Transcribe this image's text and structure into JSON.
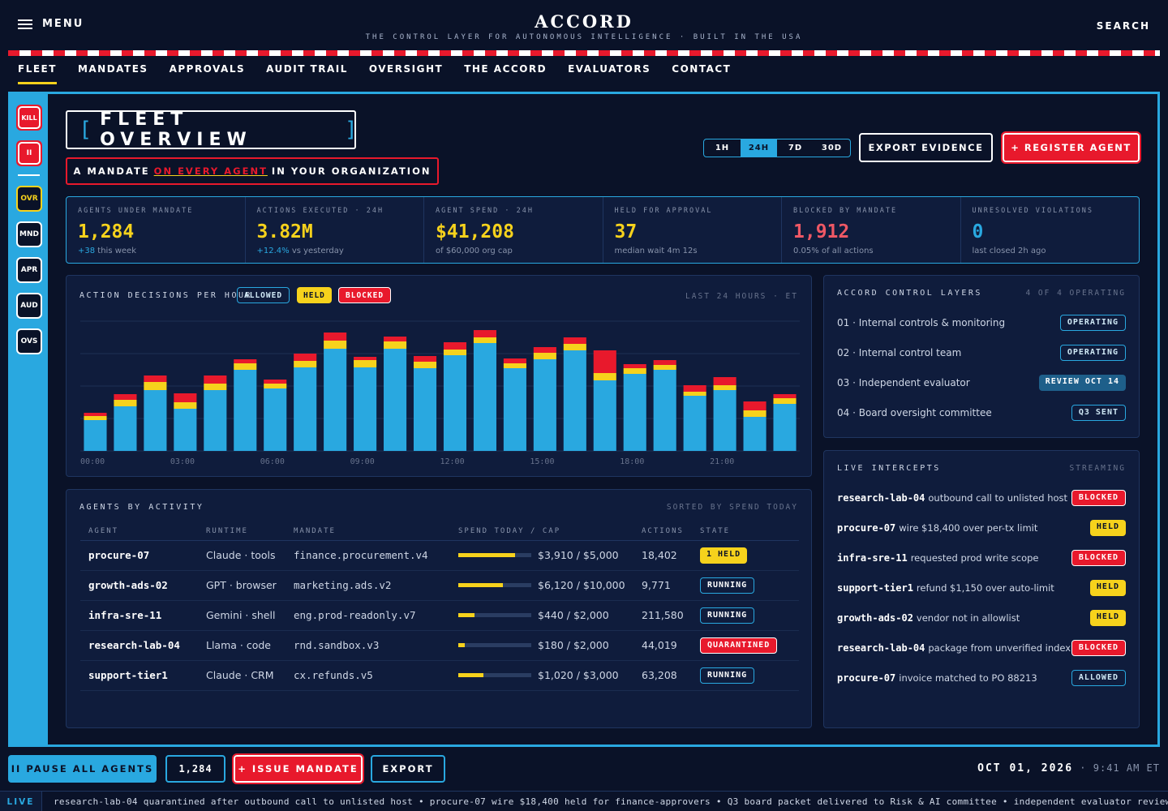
{
  "header": {
    "menu_label": "MENU",
    "brand": "ACCORD",
    "tagline": "THE CONTROL LAYER FOR AUTONOMOUS INTELLIGENCE · BUILT IN THE USA",
    "search_label": "SEARCH"
  },
  "nav": {
    "tabs": [
      {
        "label": "FLEET",
        "active": true
      },
      {
        "label": "MANDATES"
      },
      {
        "label": "APPROVALS"
      },
      {
        "label": "AUDIT TRAIL"
      },
      {
        "label": "OVERSIGHT"
      },
      {
        "label": "THE ACCORD"
      },
      {
        "label": "EVALUATORS"
      },
      {
        "label": "CONTACT"
      }
    ]
  },
  "sidebar": {
    "kill": "KILL",
    "pause": "II",
    "items": [
      {
        "label": "OVR"
      },
      {
        "label": "MND"
      },
      {
        "label": "APR"
      },
      {
        "label": "AUD"
      },
      {
        "label": "OVS"
      }
    ]
  },
  "page": {
    "title": "FLEET OVERVIEW",
    "bracket_open": "[",
    "bracket_close": "]",
    "banner_pre": "A MANDATE",
    "banner_hl": "ON EVERY AGENT",
    "banner_post": "IN YOUR ORGANIZATION"
  },
  "range": {
    "options": [
      "1H",
      "24H",
      "7D",
      "30D"
    ],
    "selected": "24H"
  },
  "actions": {
    "export_evidence": "EXPORT EVIDENCE",
    "register_agent": "+ REGISTER AGENT"
  },
  "stats": [
    {
      "label": "AGENTS UNDER MANDATE",
      "value": "1,284",
      "value_color": "#f6d21c",
      "sub_pos": "+38",
      "sub": " this week"
    },
    {
      "label": "ACTIONS EXECUTED · 24H",
      "value": "3.82M",
      "value_color": "#f6d21c",
      "sub_pos": "+12.4%",
      "sub": " vs yesterday"
    },
    {
      "label": "AGENT SPEND · 24H",
      "value": "$41,208",
      "value_color": "#f6d21c",
      "sub_pos": "",
      "sub": "of $60,000 org cap"
    },
    {
      "label": "HELD FOR APPROVAL",
      "value": "37",
      "value_color": "#f6d21c",
      "sub_pos": "",
      "sub": "median wait 4m 12s"
    },
    {
      "label": "BLOCKED BY MANDATE",
      "value": "1,912",
      "value_color": "#ee5865",
      "sub_pos": "",
      "sub": "0.05% of all actions"
    },
    {
      "label": "UNRESOLVED VIOLATIONS",
      "value": "0",
      "value_color": "#29a8e0",
      "sub_pos": "",
      "sub": "last closed 2h ago"
    }
  ],
  "chart_panel": {
    "title": "ACTION DECISIONS PER HOUR",
    "legend_allowed": "ALLOWED",
    "legend_held": "HELD",
    "legend_blocked": "BLOCKED",
    "range_label": "LAST 24 HOURS · ET"
  },
  "chart_data": {
    "type": "bar",
    "stacked": true,
    "categories": [
      "00:00",
      "01:00",
      "02:00",
      "03:00",
      "04:00",
      "05:00",
      "06:00",
      "07:00",
      "08:00",
      "09:00",
      "10:00",
      "11:00",
      "12:00",
      "13:00",
      "14:00",
      "15:00",
      "16:00",
      "17:00",
      "18:00",
      "19:00",
      "20:00",
      "21:00",
      "22:00",
      "23:00"
    ],
    "tick_labels": [
      "00:00",
      "03:00",
      "06:00",
      "09:00",
      "12:00",
      "15:00",
      "18:00",
      "21:00"
    ],
    "series": [
      {
        "name": "ALLOWED",
        "color": "#29a8e0",
        "values": [
          38,
          55,
          75,
          52,
          75,
          100,
          77,
          103,
          126,
          103,
          126,
          102,
          118,
          133,
          102,
          113,
          124,
          87,
          95,
          100,
          68,
          75,
          42,
          58
        ]
      },
      {
        "name": "HELD",
        "color": "#f6d21c",
        "values": [
          5,
          8,
          10,
          8,
          8,
          8,
          6,
          8,
          10,
          9,
          9,
          8,
          7,
          7,
          6,
          8,
          8,
          9,
          7,
          6,
          5,
          6,
          8,
          7
        ]
      },
      {
        "name": "BLOCKED",
        "color": "#e8192c",
        "values": [
          4,
          7,
          8,
          11,
          10,
          5,
          5,
          9,
          10,
          4,
          6,
          7,
          9,
          9,
          6,
          7,
          8,
          28,
          5,
          6,
          8,
          10,
          11,
          5
        ]
      }
    ],
    "ylim": [
      0,
      160
    ],
    "grid": true
  },
  "agents_panel": {
    "title": "AGENTS BY ACTIVITY",
    "sort_label": "SORTED BY SPEND TODAY",
    "columns": [
      "AGENT",
      "RUNTIME",
      "MANDATE",
      "SPEND TODAY / CAP",
      "ACTIONS",
      "STATE"
    ],
    "rows": [
      {
        "agent": "procure-07",
        "runtime": "Claude · tools",
        "mandate": "finance.procurement.v4",
        "spend": "$3,910 / $5,000",
        "spend_pct": 78,
        "actions": "18,402",
        "state": "1 HELD",
        "state_kind": "held"
      },
      {
        "agent": "growth-ads-02",
        "runtime": "GPT · browser",
        "mandate": "marketing.ads.v2",
        "spend": "$6,120 / $10,000",
        "spend_pct": 61,
        "actions": "9,771",
        "state": "RUNNING",
        "state_kind": "running"
      },
      {
        "agent": "infra-sre-11",
        "runtime": "Gemini · shell",
        "mandate": "eng.prod-readonly.v7",
        "spend": "$440 / $2,000",
        "spend_pct": 22,
        "actions": "211,580",
        "state": "RUNNING",
        "state_kind": "running"
      },
      {
        "agent": "research-lab-04",
        "runtime": "Llama · code",
        "mandate": "rnd.sandbox.v3",
        "spend": "$180 / $2,000",
        "spend_pct": 9,
        "actions": "44,019",
        "state": "QUARANTINED",
        "state_kind": "quar"
      },
      {
        "agent": "support-tier1",
        "runtime": "Claude · CRM",
        "mandate": "cx.refunds.v5",
        "spend": "$1,020 / $3,000",
        "spend_pct": 34,
        "actions": "63,208",
        "state": "RUNNING",
        "state_kind": "running"
      }
    ]
  },
  "layers_panel": {
    "title": "ACCORD CONTROL LAYERS",
    "status": "4 OF 4 OPERATING",
    "rows": [
      {
        "label": "01 · Internal controls & monitoring",
        "badge": "OPERATING",
        "kind": "op"
      },
      {
        "label": "02 · Internal control team",
        "badge": "OPERATING",
        "kind": "op"
      },
      {
        "label": "03 · Independent evaluator",
        "badge": "REVIEW OCT 14",
        "kind": "review"
      },
      {
        "label": "04 · Board oversight committee",
        "badge": "Q3 SENT",
        "kind": "op"
      }
    ]
  },
  "intercepts_panel": {
    "title": "LIVE INTERCEPTS",
    "status": "STREAMING",
    "rows": [
      {
        "who": "research-lab-04",
        "what": "outbound call to unlisted host",
        "badge": "BLOCKED",
        "kind": "blocked"
      },
      {
        "who": "procure-07",
        "what": "wire $18,400 over per-tx limit",
        "badge": "HELD",
        "kind": "held"
      },
      {
        "who": "infra-sre-11",
        "what": "requested prod write scope",
        "badge": "BLOCKED",
        "kind": "blocked"
      },
      {
        "who": "support-tier1",
        "what": "refund $1,150 over auto-limit",
        "badge": "HELD",
        "kind": "held"
      },
      {
        "who": "growth-ads-02",
        "what": "vendor not in allowlist",
        "badge": "HELD",
        "kind": "held"
      },
      {
        "who": "research-lab-04",
        "what": "package from unverified index",
        "badge": "BLOCKED",
        "kind": "blocked"
      },
      {
        "who": "procure-07",
        "what": "invoice matched to PO 88213",
        "badge": "ALLOWED",
        "kind": "allowed"
      }
    ]
  },
  "bottom": {
    "pause_all": "II PAUSE ALL AGENTS",
    "count": "1,284",
    "issue_mandate": "+ ISSUE MANDATE",
    "export": "EXPORT",
    "date": "OCT 01, 2026",
    "sep": " · ",
    "time": "9:41 AM ET"
  },
  "ticker": {
    "live": "LIVE",
    "text": "research-lab-04 quarantined after outbound call to unlisted host • procure-07 wire $18,400 held for finance-approvers • Q3 board packet delivered to Risk & AI committee • independent evaluator review scheduled"
  }
}
